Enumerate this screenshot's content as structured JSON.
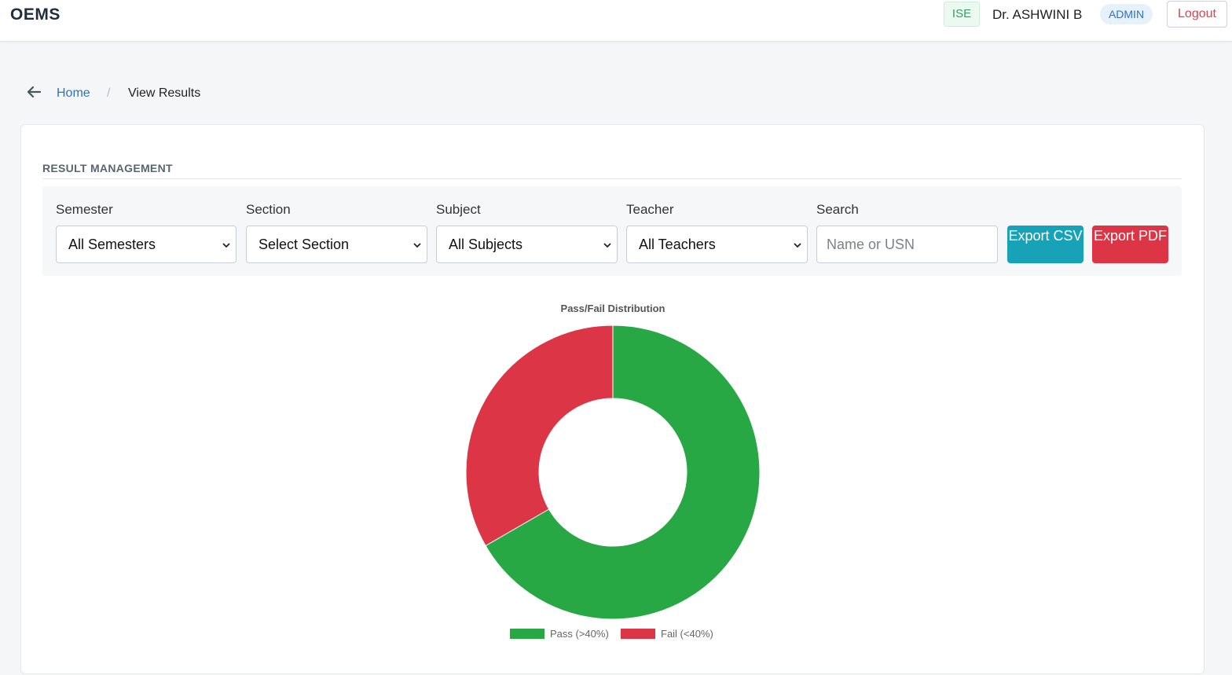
{
  "header": {
    "brand": "OEMS",
    "department_badge": "ISE",
    "user_name": "Dr. ASHWINI B",
    "role_badge": "ADMIN",
    "logout_label": "Logout"
  },
  "breadcrumb": {
    "back_icon": "arrow-left-icon",
    "home_label": "Home",
    "separator": "/",
    "current_label": "View Results"
  },
  "section": {
    "title": "RESULT MANAGEMENT"
  },
  "filters": {
    "semester": {
      "label": "Semester",
      "selected": "All Semesters"
    },
    "section": {
      "label": "Section",
      "selected": "Select Section"
    },
    "subject": {
      "label": "Subject",
      "selected": "All Subjects"
    },
    "teacher": {
      "label": "Teacher",
      "selected": "All Teachers"
    },
    "search": {
      "label": "Search",
      "placeholder": "Name or USN",
      "value": ""
    },
    "export_csv_label": "Export CSV",
    "export_pdf_label": "Export PDF"
  },
  "colors": {
    "pass": "#28a745",
    "fail": "#dc3545",
    "primary_link": "#2f72c2"
  },
  "chart_data": {
    "type": "pie",
    "subtype": "doughnut",
    "title": "Pass/Fail Distribution",
    "labels": [
      "Pass (>40%)",
      "Fail (<40%)"
    ],
    "values": [
      2,
      1
    ],
    "colors": [
      "#28a745",
      "#dc3545"
    ],
    "legend": "bottom"
  }
}
